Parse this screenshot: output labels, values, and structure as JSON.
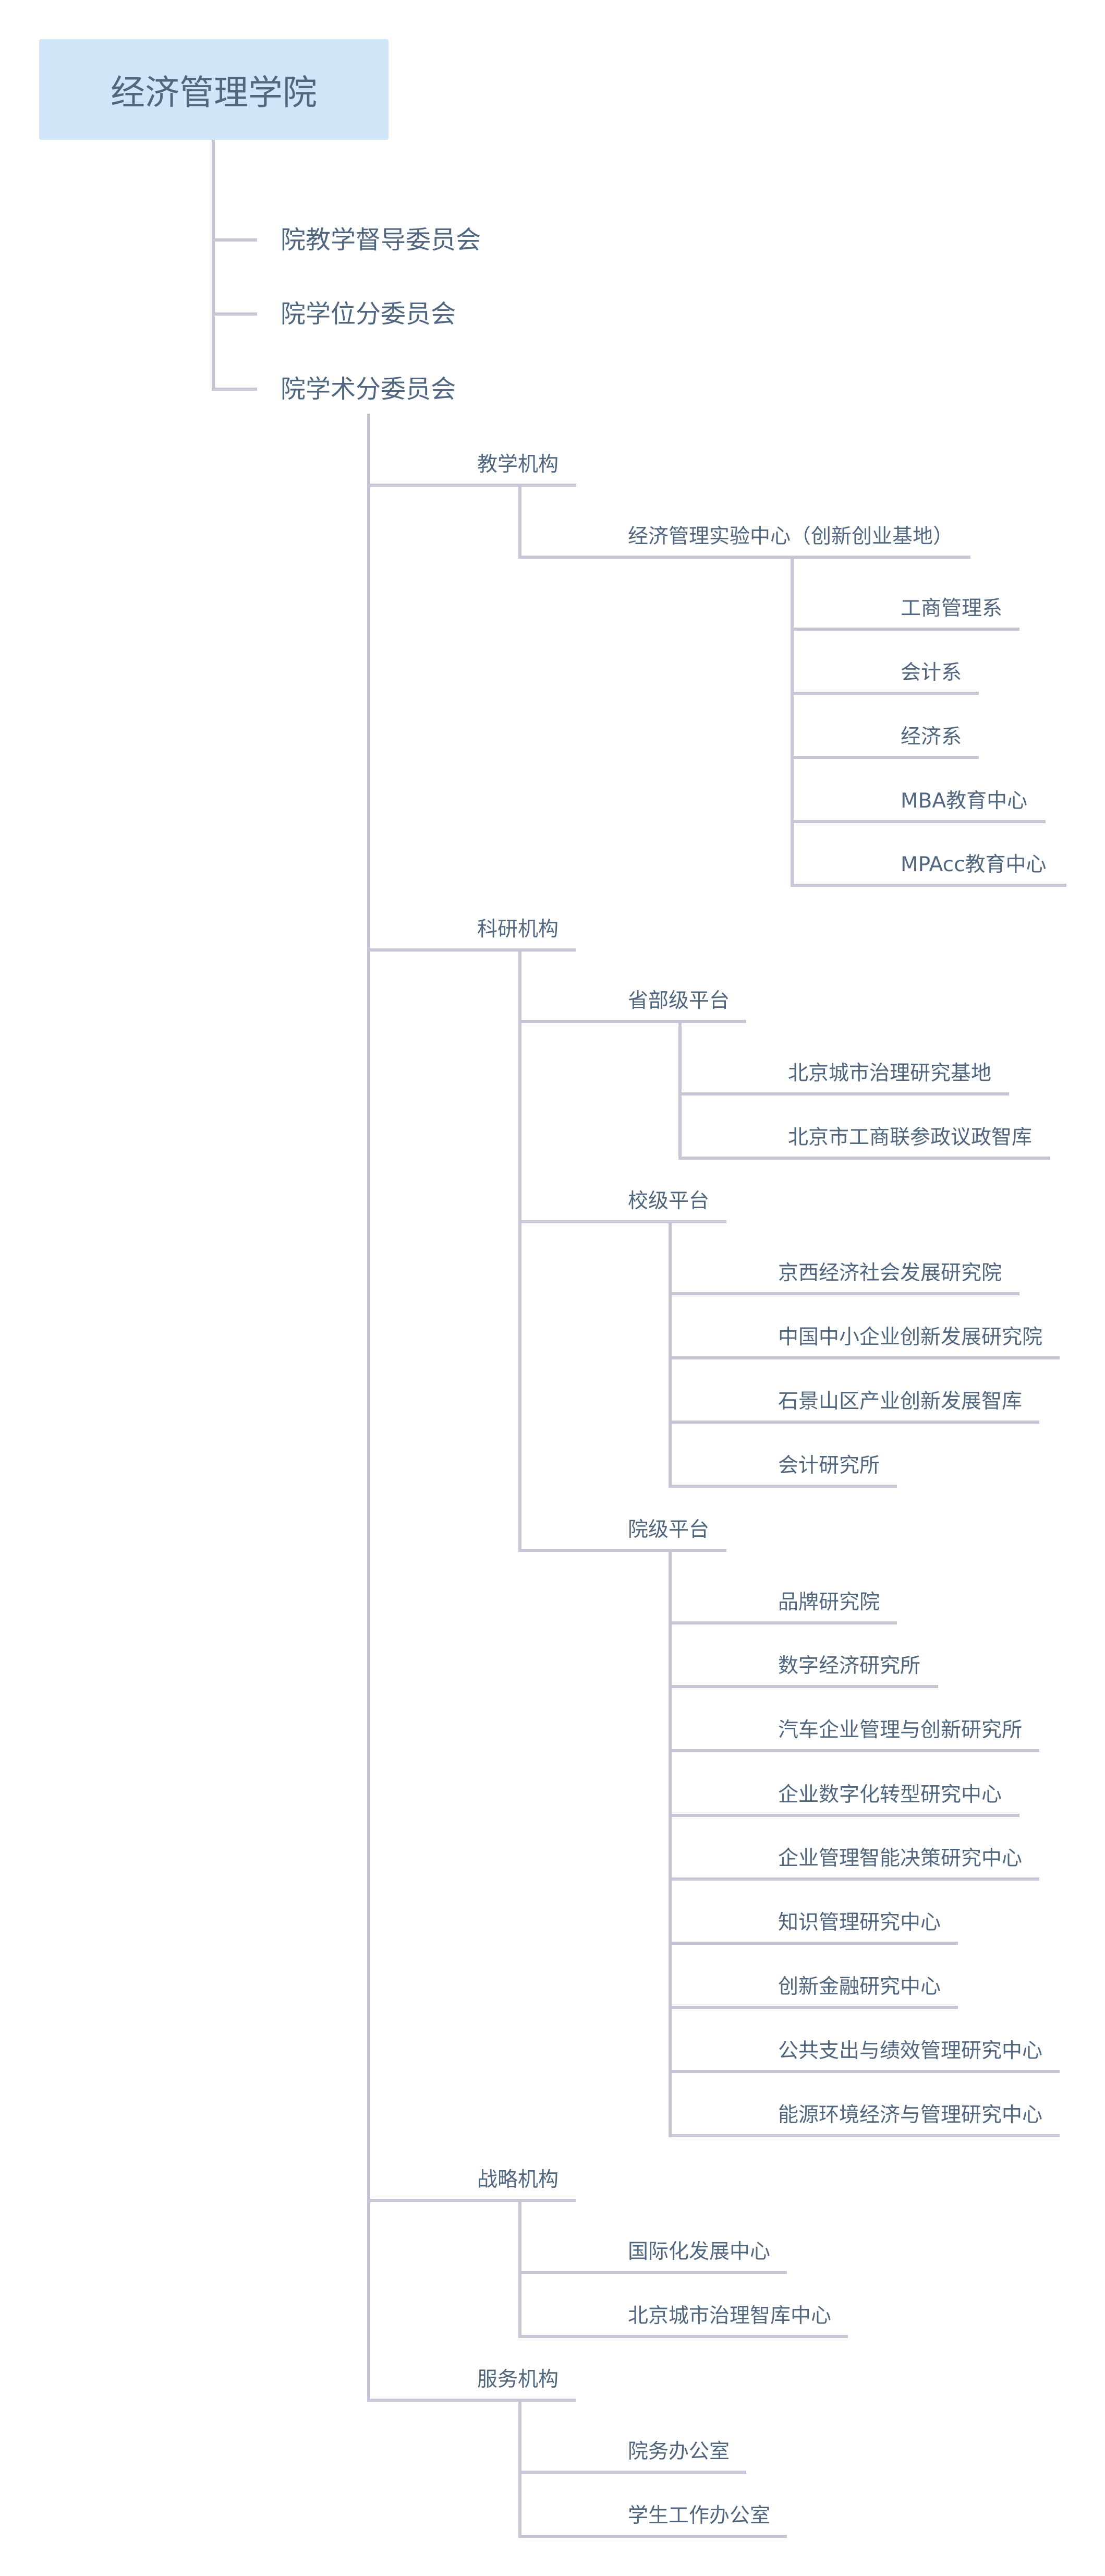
{
  "root": {
    "label": "经济管理学院"
  },
  "committees": [
    "院教学督导委员会",
    "院学位分委员会",
    "院学术分委员会"
  ],
  "branches": [
    {
      "label": "教学机构",
      "children": [
        {
          "label": "经济管理实验中心（创新创业基地）",
          "children": [
            "工商管理系",
            "会计系",
            "经济系",
            "MBA教育中心",
            "MPAcc教育中心"
          ]
        }
      ]
    },
    {
      "label": "科研机构",
      "children": [
        {
          "label": "省部级平台",
          "children": [
            "北京城市治理研究基地",
            "北京市工商联参政议政智库"
          ]
        },
        {
          "label": "校级平台",
          "children": [
            "京西经济社会发展研究院",
            "中国中小企业创新发展研究院",
            "石景山区产业创新发展智库",
            "会计研究所"
          ]
        },
        {
          "label": "院级平台",
          "children": [
            "品牌研究院",
            "数字经济研究所",
            "汽车企业管理与创新研究所",
            "企业数字化转型研究中心",
            "企业管理智能决策研究中心",
            "知识管理研究中心",
            "创新金融研究中心",
            "公共支出与绩效管理研究中心",
            "能源环境经济与管理研究中心"
          ]
        }
      ]
    },
    {
      "label": "战略机构",
      "children": [
        {
          "label": "国际化发展中心"
        },
        {
          "label": "北京城市治理智库中心"
        }
      ]
    },
    {
      "label": "服务机构",
      "children": [
        {
          "label": "院务办公室"
        },
        {
          "label": "学生工作办公室"
        }
      ]
    }
  ],
  "colors": {
    "root_bg": "#cfe5f8",
    "text": "#51677f",
    "connector": "#c8c5d7"
  }
}
